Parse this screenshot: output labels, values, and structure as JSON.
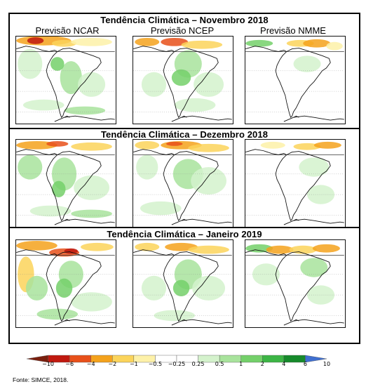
{
  "rows": [
    {
      "title": "Tendência Climática – Novembro 2018"
    },
    {
      "title": "Tendência Climática – Dezembro 2018"
    },
    {
      "title": "Tendência Climática – Janeiro 2019"
    }
  ],
  "models": [
    "Previsão NCAR",
    "Previsão NCEP",
    "Previsão NMME"
  ],
  "legend": {
    "tick_labels": [
      "−10",
      "−6",
      "−4",
      "−2",
      "−1",
      "−0.5",
      "−0.25",
      "0.25",
      "0.5",
      "1",
      "2",
      "4",
      "6",
      "10"
    ],
    "colors": [
      "#7a1f0e",
      "#c0190f",
      "#e8501a",
      "#f4a21c",
      "#fbd45b",
      "#fdf1a8",
      "#ffffff",
      "#ffffff",
      "#d4f2cc",
      "#a8e39c",
      "#74d06a",
      "#3cb545",
      "#168a2b",
      "#3f6fd0"
    ]
  },
  "source": "Fonte: SIMCE, 2018."
}
